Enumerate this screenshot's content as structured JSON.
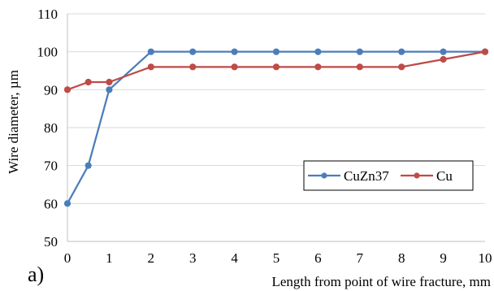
{
  "chart_data": {
    "type": "line",
    "panel_label": "a)",
    "xlabel": "Length from point of wire fracture, mm",
    "ylabel": "Wire diameter, µm",
    "xlim": [
      0,
      10
    ],
    "ylim": [
      50,
      110
    ],
    "x_ticks": [
      0,
      1,
      2,
      3,
      4,
      5,
      6,
      7,
      8,
      9,
      10
    ],
    "y_ticks": [
      50,
      60,
      70,
      80,
      90,
      100,
      110
    ],
    "grid": "horizontal",
    "legend_position": "bottom-right",
    "series": [
      {
        "name": "CuZn37",
        "color": "#4a7ebb",
        "marker": "circle",
        "points": [
          {
            "x": 0,
            "y": 60
          },
          {
            "x": 0.5,
            "y": 70
          },
          {
            "x": 1,
            "y": 90
          },
          {
            "x": 2,
            "y": 100
          },
          {
            "x": 3,
            "y": 100
          },
          {
            "x": 4,
            "y": 100
          },
          {
            "x": 5,
            "y": 100
          },
          {
            "x": 6,
            "y": 100
          },
          {
            "x": 7,
            "y": 100
          },
          {
            "x": 8,
            "y": 100
          },
          {
            "x": 9,
            "y": 100
          },
          {
            "x": 10,
            "y": 100
          }
        ]
      },
      {
        "name": "Cu",
        "color": "#be4b48",
        "marker": "circle",
        "points": [
          {
            "x": 0,
            "y": 90
          },
          {
            "x": 0.5,
            "y": 92
          },
          {
            "x": 1,
            "y": 92
          },
          {
            "x": 2,
            "y": 96
          },
          {
            "x": 3,
            "y": 96
          },
          {
            "x": 4,
            "y": 96
          },
          {
            "x": 5,
            "y": 96
          },
          {
            "x": 6,
            "y": 96
          },
          {
            "x": 7,
            "y": 96
          },
          {
            "x": 8,
            "y": 96
          },
          {
            "x": 9,
            "y": 98
          },
          {
            "x": 10,
            "y": 100
          }
        ]
      }
    ]
  }
}
